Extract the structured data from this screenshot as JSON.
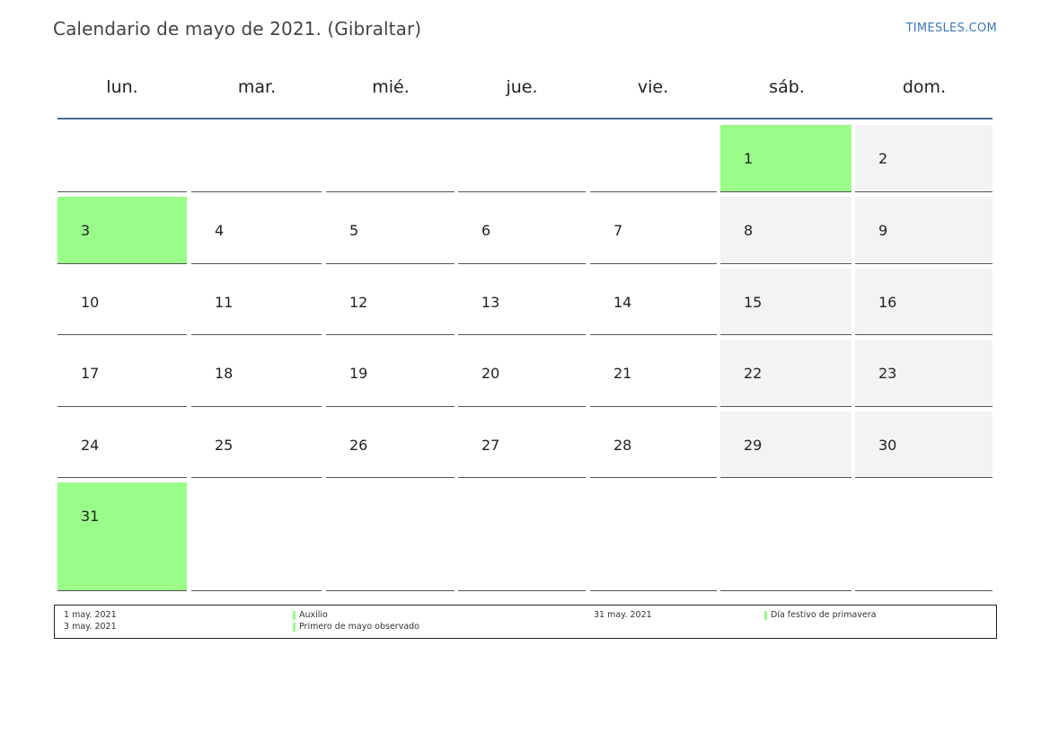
{
  "title": "Calendario de mayo de 2021. (Gibraltar)",
  "brand": "TIMESLES.COM",
  "colors": {
    "holiday": "#9afc89",
    "weekend": "#f3f3f3",
    "header_rule": "#4a6a92",
    "brand": "#3a78b5"
  },
  "weekdays": [
    "lun.",
    "mar.",
    "mié.",
    "jue.",
    "vie.",
    "sáb.",
    "dom."
  ],
  "weeks": [
    [
      null,
      null,
      null,
      null,
      null,
      1,
      2
    ],
    [
      3,
      4,
      5,
      6,
      7,
      8,
      9
    ],
    [
      10,
      11,
      12,
      13,
      14,
      15,
      16
    ],
    [
      17,
      18,
      19,
      20,
      21,
      22,
      23
    ],
    [
      24,
      25,
      26,
      27,
      28,
      29,
      30
    ],
    [
      31,
      null,
      null,
      null,
      null,
      null,
      null
    ]
  ],
  "holiday_days": [
    1,
    3,
    31
  ],
  "legend": [
    {
      "date": "1 may. 2021",
      "name": "Auxilio"
    },
    {
      "date": "3 may. 2021",
      "name": "Primero de mayo observado"
    },
    {
      "date": "31 may. 2021",
      "name": "Día festivo de primavera"
    }
  ]
}
